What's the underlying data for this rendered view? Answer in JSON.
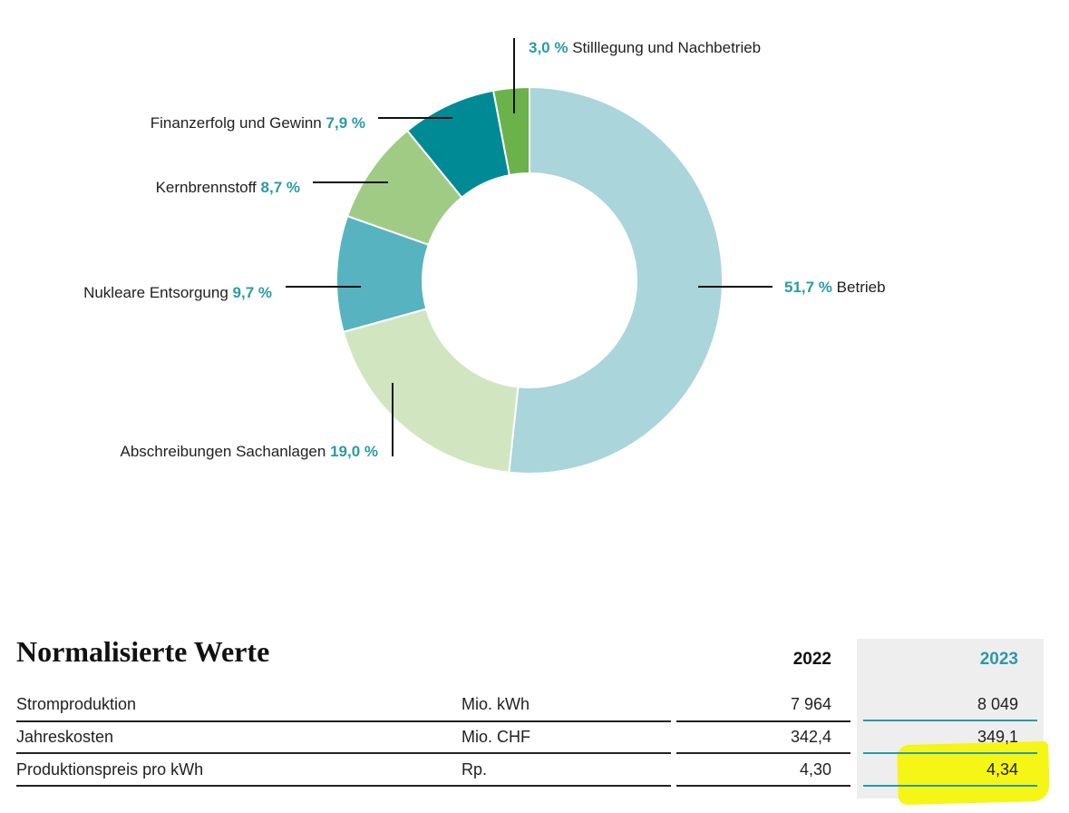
{
  "chart_data": {
    "type": "pie",
    "donut": true,
    "slices": [
      {
        "label": "Betrieb",
        "value": 51.7,
        "pct_text": "51,7 %",
        "color": "#a9d5db"
      },
      {
        "label": "Abschreibungen Sachanlagen",
        "value": 19.0,
        "pct_text": "19,0 %",
        "color": "#d1e6c0"
      },
      {
        "label": "Nukleare Entsorgung",
        "value": 9.7,
        "pct_text": "9,7 %",
        "color": "#56b3bf"
      },
      {
        "label": "Kernbrennstoff",
        "value": 8.7,
        "pct_text": "8,7 %",
        "color": "#a0cb84"
      },
      {
        "label": "Finanzerfolg und Gewinn",
        "value": 7.9,
        "pct_text": "7,9 %",
        "color": "#008a96"
      },
      {
        "label": "Stilllegung und Nachbetrieb",
        "value": 3.0,
        "pct_text": "3,0 %",
        "color": "#6bb24a"
      }
    ]
  },
  "table": {
    "title": "Normalisierte Werte",
    "years": [
      "2022",
      "2023"
    ],
    "highlight_color": "#f5f516",
    "rows": [
      {
        "name": "Stromproduktion",
        "unit": "Mio. kWh",
        "v2022": "7 964",
        "v2023": "8 049"
      },
      {
        "name": "Jahreskosten",
        "unit": "Mio. CHF",
        "v2022": "342,4",
        "v2023": "349,1"
      },
      {
        "name": "Produktionspreis pro kWh",
        "unit": "Rp.",
        "v2022": "4,30",
        "v2023": "4,34"
      }
    ]
  }
}
